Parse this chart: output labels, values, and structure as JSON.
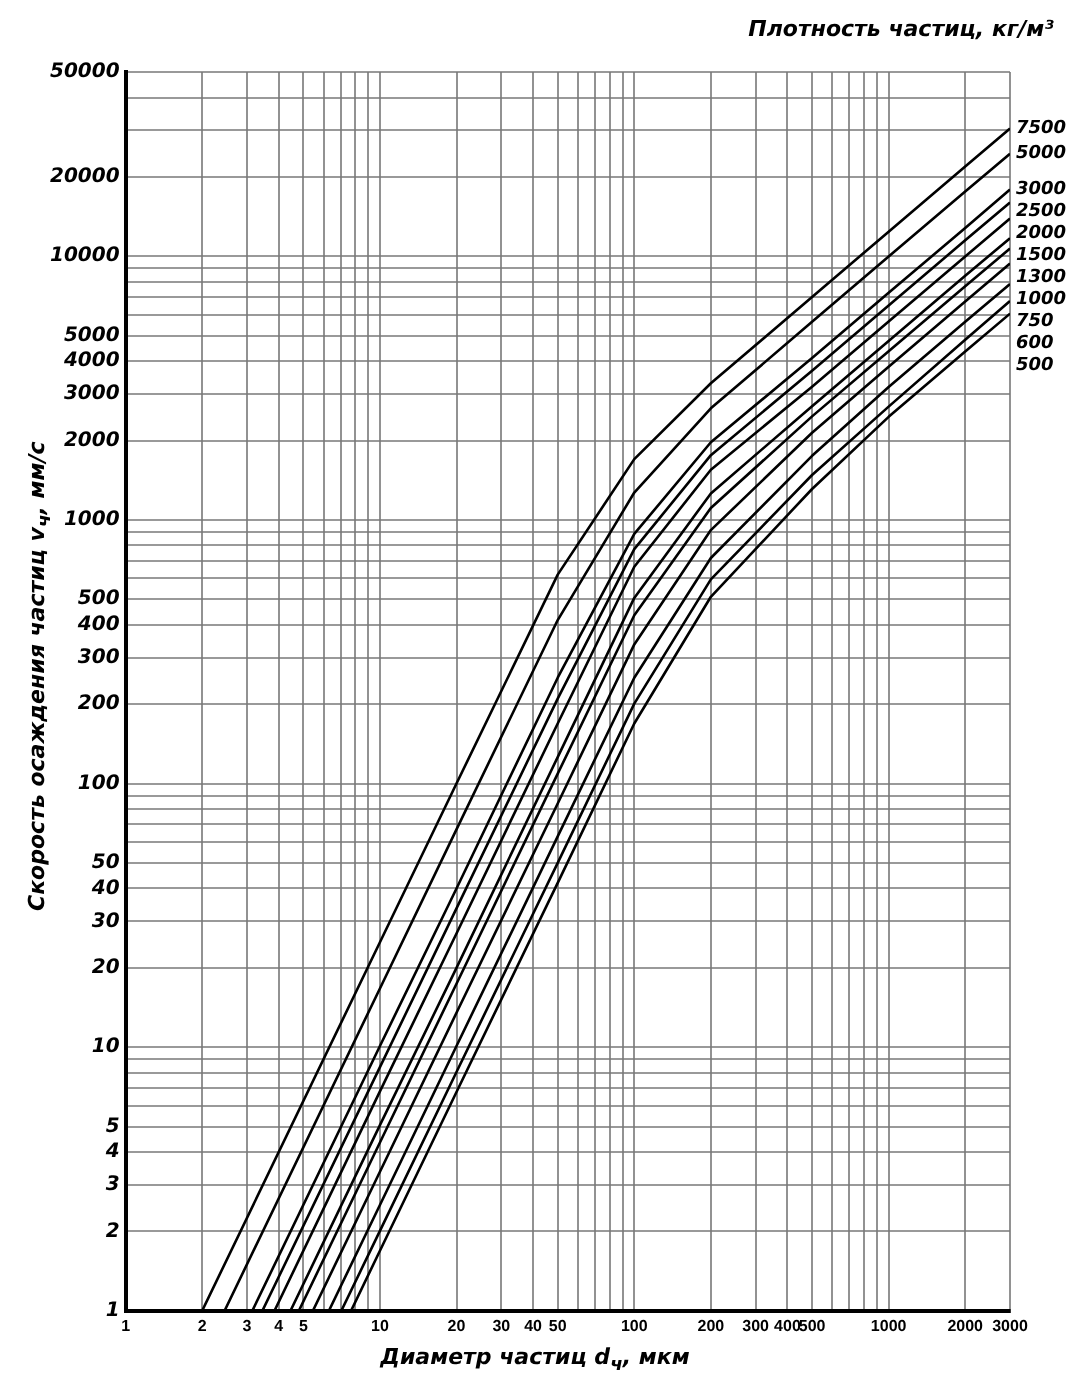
{
  "chart_data": {
    "type": "line",
    "legend_title": "Плотность частиц, кг/м³",
    "xlabel": "Диаметр частиц d$_{ч}$, мкм",
    "ylabel": "Скорость осаждения частиц v$_{ч}$, мм/с",
    "log": "xy",
    "grid": true,
    "legend": false,
    "marker": "none",
    "line_style": "solid",
    "xlim": [
      1,
      3000
    ],
    "ylim": [
      1,
      50000
    ],
    "xticks": [
      1,
      2,
      3,
      4,
      5,
      {
        "value": 6,
        "label": null
      },
      {
        "value": 7,
        "label": null
      },
      {
        "value": 8,
        "label": null
      },
      {
        "value": 9,
        "label": null
      },
      10,
      20,
      30,
      40,
      50,
      {
        "value": 60,
        "label": null
      },
      {
        "value": 70,
        "label": null
      },
      {
        "value": 80,
        "label": null
      },
      {
        "value": 90,
        "label": null
      },
      100,
      200,
      300,
      400,
      500,
      {
        "value": 600,
        "label": null
      },
      {
        "value": 700,
        "label": null
      },
      {
        "value": 800,
        "label": null
      },
      {
        "value": 900,
        "label": null
      },
      1000,
      2000,
      3000
    ],
    "yticks": [
      1,
      2,
      3,
      4,
      5,
      {
        "value": 6,
        "label": null
      },
      {
        "value": 7,
        "label": null
      },
      {
        "value": 8,
        "label": null
      },
      {
        "value": 9,
        "label": null
      },
      10,
      20,
      30,
      40,
      50,
      {
        "value": 60,
        "label": null
      },
      {
        "value": 70,
        "label": null
      },
      {
        "value": 80,
        "label": null
      },
      {
        "value": 90,
        "label": null
      },
      100,
      200,
      300,
      400,
      500,
      {
        "value": 600,
        "label": null
      },
      {
        "value": 700,
        "label": null
      },
      {
        "value": 800,
        "label": null
      },
      {
        "value": 900,
        "label": null
      },
      1000,
      2000,
      3000,
      4000,
      5000,
      {
        "value": 6000,
        "label": null
      },
      {
        "value": 7000,
        "label": null
      },
      {
        "value": 8000,
        "label": null
      },
      {
        "value": 9000,
        "label": null
      },
      10000,
      20000,
      {
        "value": 30000,
        "label": null
      },
      {
        "value": 40000,
        "label": null
      },
      50000
    ],
    "series": [
      {
        "name": "7500",
        "color": "#000000",
        "x": [
          2,
          10,
          20,
          50,
          100,
          200,
          500,
          1000,
          2000,
          3000
        ],
        "values": [
          1,
          25,
          100,
          620,
          1700,
          3300,
          7000,
          12400,
          21900,
          30500
        ]
      },
      {
        "name": "5000",
        "color": "#000000",
        "x": [
          2.45,
          10,
          20,
          50,
          100,
          200,
          500,
          1000,
          2000,
          3000
        ],
        "values": [
          1,
          16.7,
          67,
          417,
          1270,
          2650,
          5640,
          9980,
          17600,
          24500
        ]
      },
      {
        "name": "3000",
        "color": "#000000",
        "x": [
          3.15,
          10,
          20,
          50,
          100,
          200,
          500,
          1000,
          2000,
          3000
        ],
        "values": [
          1,
          10.1,
          40,
          252,
          885,
          1970,
          4110,
          7270,
          12800,
          17900
        ]
      },
      {
        "name": "2500",
        "color": "#000000",
        "x": [
          3.45,
          10,
          20,
          50,
          100,
          200,
          500,
          1000,
          2000,
          3000
        ],
        "values": [
          1,
          8.4,
          33.6,
          210,
          775,
          1760,
          3680,
          6500,
          11500,
          16000
        ]
      },
      {
        "name": "2000",
        "color": "#000000",
        "x": [
          3.85,
          10,
          20,
          50,
          100,
          200,
          500,
          1000,
          2000,
          3000
        ],
        "values": [
          1,
          6.8,
          27,
          169,
          664,
          1550,
          3200,
          5660,
          9980,
          13900
        ]
      },
      {
        "name": "1500",
        "color": "#000000",
        "x": [
          4.45,
          10,
          20,
          50,
          100,
          200,
          500,
          1000,
          2000,
          3000
        ],
        "values": [
          1,
          5.06,
          20,
          126,
          506,
          1260,
          2700,
          4770,
          8440,
          11700
        ]
      },
      {
        "name": "1300",
        "color": "#000000",
        "x": [
          4.8,
          10,
          20,
          50,
          100,
          200,
          500,
          1000,
          2000,
          3000
        ],
        "values": [
          1,
          4.35,
          17.4,
          109,
          435,
          1110,
          2470,
          4360,
          7700,
          10700
        ]
      },
      {
        "name": "1000",
        "color": "#000000",
        "x": [
          5.45,
          10,
          20,
          50,
          100,
          200,
          500,
          1000,
          2000,
          3000
        ],
        "values": [
          1,
          3.37,
          13.5,
          84,
          337,
          915,
          2140,
          3810,
          6730,
          9380
        ]
      },
      {
        "name": "750",
        "color": "#000000",
        "x": [
          6.3,
          10,
          20,
          50,
          100,
          200,
          500,
          1000,
          2000,
          3000
        ],
        "values": [
          1,
          2.52,
          10.1,
          63,
          252,
          717,
          1750,
          3190,
          5640,
          7850
        ]
      },
      {
        "name": "600",
        "color": "#000000",
        "x": [
          7.05,
          10,
          20,
          50,
          100,
          200,
          500,
          1000,
          2000,
          3000
        ],
        "values": [
          1,
          2.01,
          8.05,
          50,
          201,
          595,
          1480,
          2690,
          4820,
          6760
        ]
      },
      {
        "name": "500",
        "color": "#000000",
        "x": [
          7.7,
          10,
          20,
          50,
          100,
          200,
          500,
          1000,
          2000,
          3000
        ],
        "values": [
          1,
          1.69,
          6.76,
          42,
          169,
          511,
          1310,
          2460,
          4350,
          6060
        ]
      }
    ]
  }
}
